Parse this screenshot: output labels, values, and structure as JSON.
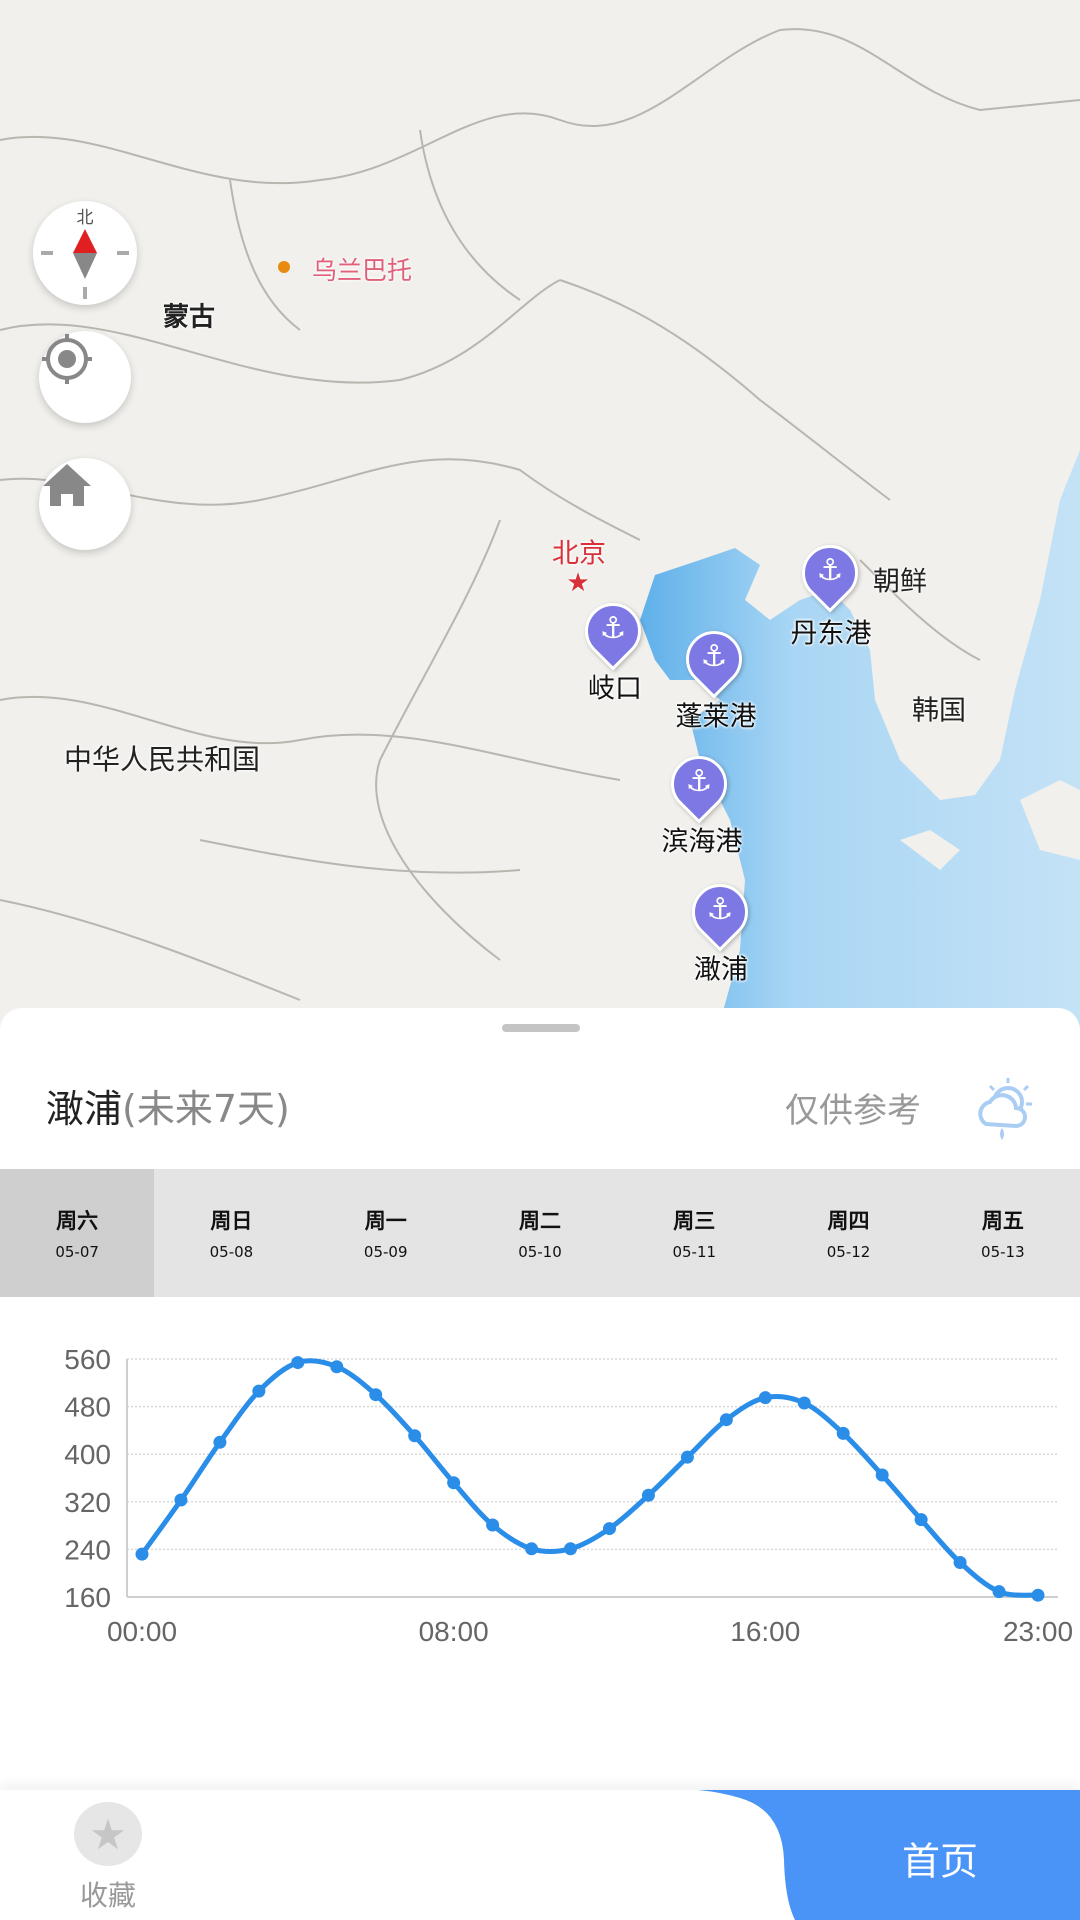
{
  "map": {
    "compass_label": "北",
    "labels": {
      "mongolia": "蒙古",
      "ulaanbaatar": "乌兰巴托",
      "beijing": "北京",
      "china": "中华人民共和国",
      "north_korea": "朝鲜",
      "south_korea": "韩国"
    },
    "ports": [
      {
        "name": "岐口"
      },
      {
        "name": "蓬莱港"
      },
      {
        "name": "丹东港"
      },
      {
        "name": "滨海港"
      },
      {
        "name": "澉浦"
      }
    ],
    "colors": {
      "sea": "#8fc8f0",
      "land": "#f1f0ec",
      "pin": "#7d78e4",
      "capital": "#d9303a"
    }
  },
  "panel": {
    "port": "澉浦",
    "subtitle": "(未来7天)",
    "reference": "仅供参考",
    "days": [
      {
        "day": "周六",
        "date": "05-07",
        "selected": true
      },
      {
        "day": "周日",
        "date": "05-08"
      },
      {
        "day": "周一",
        "date": "05-09"
      },
      {
        "day": "周二",
        "date": "05-10"
      },
      {
        "day": "周三",
        "date": "05-11"
      },
      {
        "day": "周四",
        "date": "05-12"
      },
      {
        "day": "周五",
        "date": "05-13"
      }
    ]
  },
  "chart_data": {
    "type": "line",
    "x": [
      "00:00",
      "01:00",
      "02:00",
      "03:00",
      "04:00",
      "05:00",
      "06:00",
      "07:00",
      "08:00",
      "09:00",
      "10:00",
      "11:00",
      "12:00",
      "13:00",
      "14:00",
      "15:00",
      "16:00",
      "17:00",
      "18:00",
      "19:00",
      "20:00",
      "21:00",
      "22:00",
      "23:00"
    ],
    "values": [
      232,
      323,
      420,
      506,
      554,
      547,
      500,
      431,
      352,
      281,
      241,
      241,
      275,
      331,
      395,
      458,
      495,
      486,
      435,
      365,
      290,
      218,
      169,
      163
    ],
    "x_ticks": [
      "00:00",
      "08:00",
      "16:00",
      "23:00"
    ],
    "y_ticks": [
      "160",
      "240",
      "320",
      "400",
      "480",
      "560"
    ],
    "ylim": [
      160,
      560
    ],
    "grid": true,
    "color": "#2a8de8"
  },
  "nav": {
    "favorites": "收藏",
    "home": "首页",
    "active_color": "#4a94f8"
  }
}
